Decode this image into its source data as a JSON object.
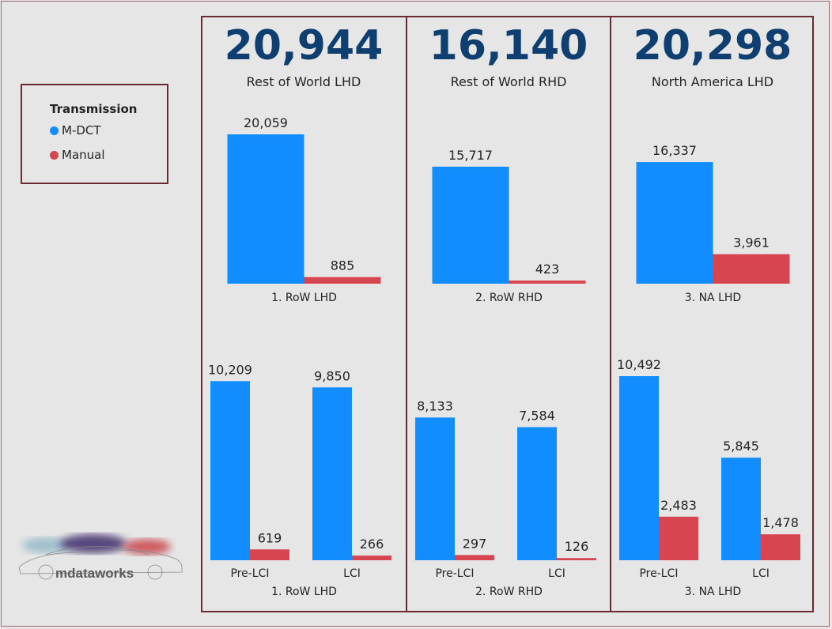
{
  "legend": {
    "title": "Transmission",
    "items": [
      {
        "label": "M-DCT",
        "color": "#118dff"
      },
      {
        "label": "Manual",
        "color": "#d64550"
      }
    ]
  },
  "kpis": [
    {
      "value": "20,944",
      "label": "Rest of World LHD"
    },
    {
      "value": "16,140",
      "label": "Rest of World RHD"
    },
    {
      "value": "20,298",
      "label": "North America LHD"
    }
  ],
  "logo": {
    "text": "mdataworks"
  },
  "chart_data": [
    {
      "type": "bar",
      "panel": 0,
      "row": "top",
      "categories": [
        ""
      ],
      "axis_label": "1. RoW LHD",
      "series": [
        {
          "name": "M-DCT",
          "values": [
            20059
          ],
          "labels": [
            "20,059"
          ]
        },
        {
          "name": "Manual",
          "values": [
            885
          ],
          "labels": [
            "885"
          ]
        }
      ],
      "ylim": [
        0,
        20059
      ]
    },
    {
      "type": "bar",
      "panel": 1,
      "row": "top",
      "categories": [
        ""
      ],
      "axis_label": "2. RoW RHD",
      "series": [
        {
          "name": "M-DCT",
          "values": [
            15717
          ],
          "labels": [
            "15,717"
          ]
        },
        {
          "name": "Manual",
          "values": [
            423
          ],
          "labels": [
            "423"
          ]
        }
      ],
      "ylim": [
        0,
        20059
      ]
    },
    {
      "type": "bar",
      "panel": 2,
      "row": "top",
      "categories": [
        ""
      ],
      "axis_label": "3. NA LHD",
      "series": [
        {
          "name": "M-DCT",
          "values": [
            16337
          ],
          "labels": [
            "16,337"
          ]
        },
        {
          "name": "Manual",
          "values": [
            3961
          ],
          "labels": [
            "3,961"
          ]
        }
      ],
      "ylim": [
        0,
        20059
      ]
    },
    {
      "type": "bar",
      "panel": 0,
      "row": "bottom",
      "categories": [
        "Pre-LCI",
        "LCI"
      ],
      "axis_label": "1. RoW LHD",
      "series": [
        {
          "name": "M-DCT",
          "values": [
            10209,
            9850
          ],
          "labels": [
            "10,209",
            "9,850"
          ]
        },
        {
          "name": "Manual",
          "values": [
            619,
            266
          ],
          "labels": [
            "619",
            "266"
          ]
        }
      ],
      "ylim": [
        0,
        10492
      ]
    },
    {
      "type": "bar",
      "panel": 1,
      "row": "bottom",
      "categories": [
        "Pre-LCI",
        "LCI"
      ],
      "axis_label": "2. RoW RHD",
      "series": [
        {
          "name": "M-DCT",
          "values": [
            8133,
            7584
          ],
          "labels": [
            "8,133",
            "7,584"
          ]
        },
        {
          "name": "Manual",
          "values": [
            297,
            126
          ],
          "labels": [
            "297",
            "126"
          ]
        }
      ],
      "ylim": [
        0,
        10492
      ]
    },
    {
      "type": "bar",
      "panel": 2,
      "row": "bottom",
      "categories": [
        "Pre-LCI",
        "LCI"
      ],
      "axis_label": "3. NA LHD",
      "series": [
        {
          "name": "M-DCT",
          "values": [
            10492,
            5845
          ],
          "labels": [
            "10,492",
            "5,845"
          ]
        },
        {
          "name": "Manual",
          "values": [
            2483,
            1478
          ],
          "labels": [
            "2,483",
            "1,478"
          ]
        }
      ],
      "ylim": [
        0,
        10492
      ]
    }
  ]
}
